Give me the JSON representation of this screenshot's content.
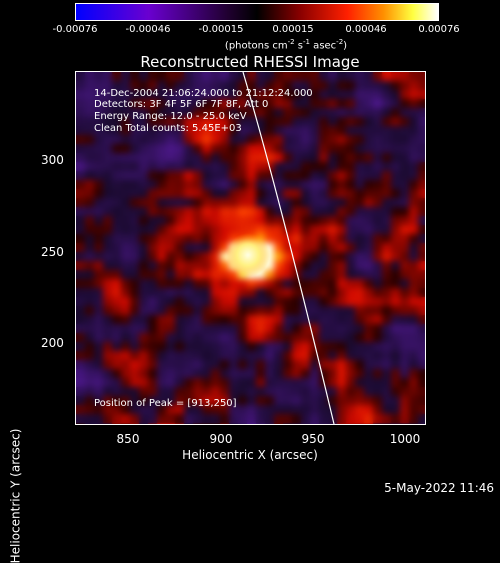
{
  "colorbar": {
    "ticks": [
      "-0.00076",
      "-0.00046",
      "-0.00015",
      "0.00015",
      "0.00046",
      "0.00076"
    ],
    "units_prefix": "(photons cm",
    "units_sup1": "-2",
    "units_mid1": " s",
    "units_sup2": "-1",
    "units_mid2": " asec",
    "units_sup3": "-2",
    "units_suffix": ")"
  },
  "plot": {
    "title": "Reconstructed RHESSI Image",
    "annotations": {
      "time": "14-Dec-2004 21:06:24.000 to 21:12:24.000",
      "detectors": "Detectors: 3F 4F 5F 6F 7F 8F, Att 0",
      "energy": "Energy Range: 12.0 - 25.0 keV",
      "clean": "Clean    Total counts: 5.45E+03",
      "peak": "Position of Peak = [913,250]"
    },
    "xlabel": "Heliocentric X (arcsec)",
    "ylabel": "Heliocentric Y (arcsec)",
    "xticks": [
      "850",
      "900",
      "950",
      "1000"
    ],
    "yticks": [
      "300",
      "250",
      "200"
    ],
    "colors": {
      "negative": "#5a1aa0",
      "positive": "#c81e00",
      "peak": "#ffffb0",
      "limb": "#ffffff"
    }
  },
  "footer": {
    "timestamp": "5-May-2022 11:46"
  }
}
